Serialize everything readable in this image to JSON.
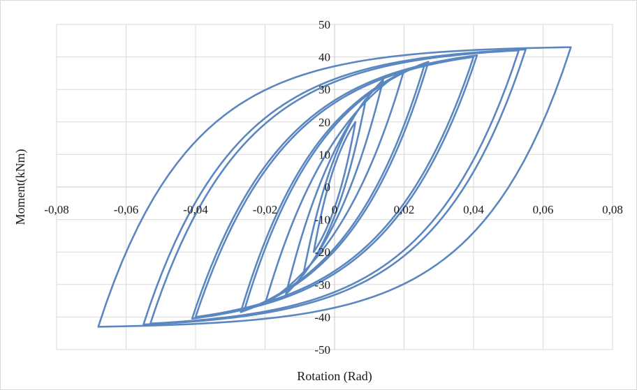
{
  "chart_data": {
    "type": "line",
    "title": "",
    "xlabel": "Rotation (Rad)",
    "ylabel": "Moment(kNm)",
    "xlim": [
      -0.08,
      0.08
    ],
    "ylim": [
      -50,
      50
    ],
    "grid": true,
    "legend": "none",
    "x_ticks": [
      {
        "value": -0.08,
        "label": "-0,08"
      },
      {
        "value": -0.06,
        "label": "-0,06"
      },
      {
        "value": -0.04,
        "label": "-0,04"
      },
      {
        "value": -0.02,
        "label": "-0,02"
      },
      {
        "value": 0,
        "label": "0"
      },
      {
        "value": 0.02,
        "label": "0,02"
      },
      {
        "value": 0.04,
        "label": "0,04"
      },
      {
        "value": 0.06,
        "label": "0,06"
      },
      {
        "value": 0.08,
        "label": "0,08"
      }
    ],
    "y_ticks": [
      {
        "value": 50,
        "label": "50"
      },
      {
        "value": 40,
        "label": "40"
      },
      {
        "value": 30,
        "label": "30"
      },
      {
        "value": 20,
        "label": "20"
      },
      {
        "value": 10,
        "label": "10"
      },
      {
        "value": 0,
        "label": "0"
      },
      {
        "value": -10,
        "label": "-10"
      },
      {
        "value": -20,
        "label": "-20"
      },
      {
        "value": -30,
        "label": "-30"
      },
      {
        "value": -40,
        "label": "-40"
      },
      {
        "value": -50,
        "label": "-50"
      }
    ],
    "color": "#5b87c0",
    "cycles": [
      {
        "peak_rotation": 0.006,
        "peak_moment": 20,
        "stiffness_rotation": 0.0045
      },
      {
        "peak_rotation": 0.009,
        "peak_moment": 27,
        "stiffness_rotation": 0.0065
      },
      {
        "peak_rotation": 0.014,
        "peak_moment": 33,
        "stiffness_rotation": 0.01
      },
      {
        "peak_rotation": 0.02,
        "peak_moment": 36,
        "stiffness_rotation": 0.012
      },
      {
        "peak_rotation": 0.026,
        "peak_moment": 38,
        "stiffness_rotation": 0.012
      },
      {
        "peak_rotation": 0.027,
        "peak_moment": 38.5,
        "stiffness_rotation": 0.012
      },
      {
        "peak_rotation": 0.04,
        "peak_moment": 40,
        "stiffness_rotation": 0.013
      },
      {
        "peak_rotation": 0.041,
        "peak_moment": 40.5,
        "stiffness_rotation": 0.013
      },
      {
        "peak_rotation": 0.053,
        "peak_moment": 42,
        "stiffness_rotation": 0.013
      },
      {
        "peak_rotation": 0.055,
        "peak_moment": 42.3,
        "stiffness_rotation": 0.013
      },
      {
        "peak_rotation": 0.068,
        "peak_moment": 43,
        "stiffness_rotation": 0.013
      }
    ]
  }
}
